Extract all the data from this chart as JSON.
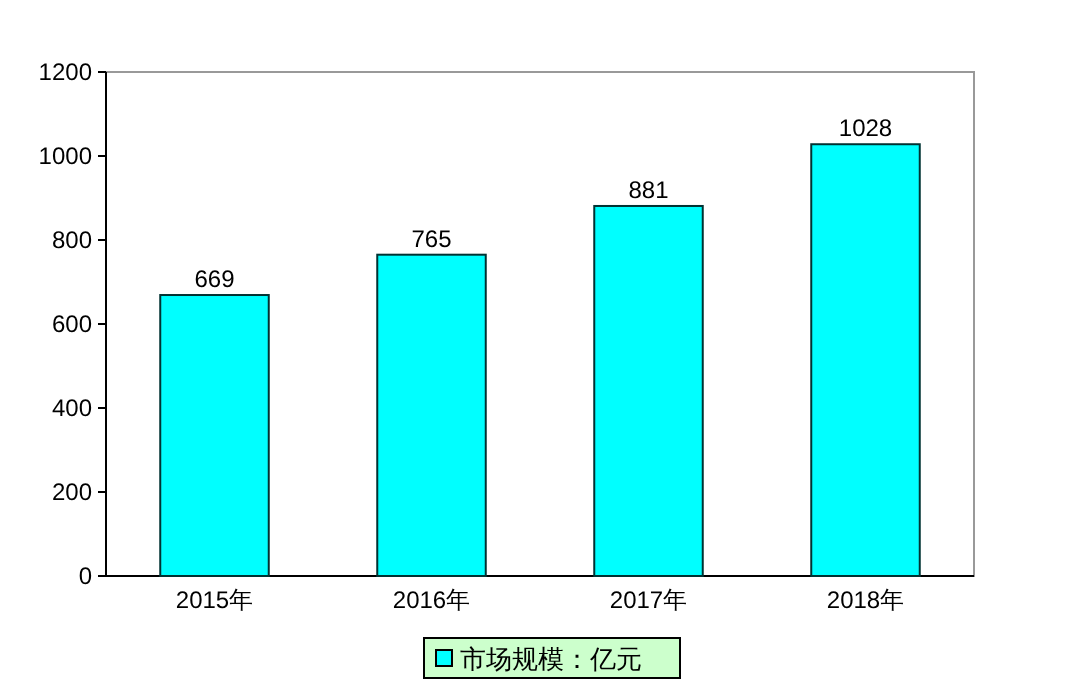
{
  "chart_data": {
    "type": "bar",
    "categories": [
      "2015年",
      "2016年",
      "2017年",
      "2018年"
    ],
    "series": [
      {
        "name": "市场规模：亿元",
        "color": "#00ffff",
        "values": [
          669,
          765,
          881,
          1028
        ]
      }
    ],
    "ylim": [
      0,
      1200
    ],
    "yticks": [
      0,
      200,
      400,
      600,
      800,
      1000,
      1200
    ],
    "data_labels": true,
    "legend": "bottom",
    "grid": false
  }
}
